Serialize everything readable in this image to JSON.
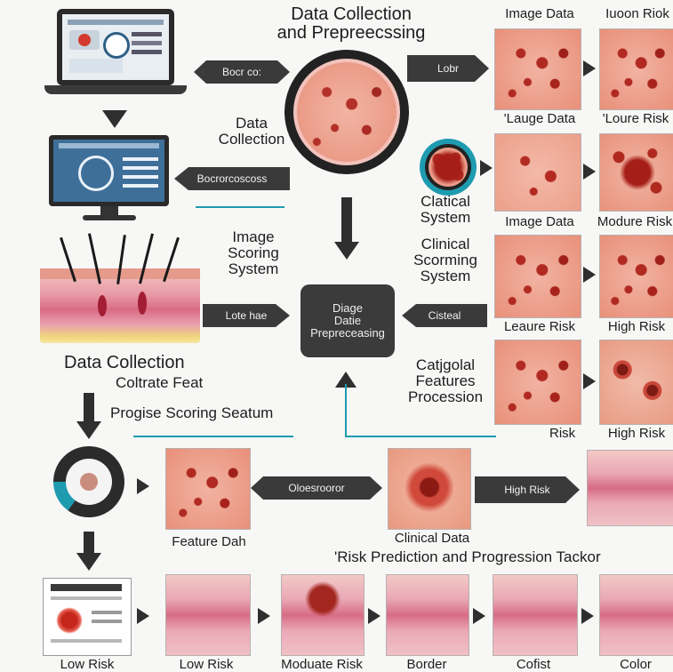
{
  "title_main": "Data Collection\nand Prepreecssing",
  "labels": {
    "image_data_top": "Image Data",
    "risk_top": "Iuoon Riok",
    "large_data": "'Lauge Data",
    "loure_risk": "'Loure Risk",
    "data_collection_mid": "Data\nCollection",
    "clatical_system": "Clatical\nSystem",
    "image_data_mid": "Image Data",
    "modure_risk": "Modure Risk",
    "image_scoring": "Image\nScoring\nSystem",
    "clinical_scoring": "Clinical\nScorming\nSystem",
    "leasure_risk": "Leaure Risk",
    "high_risk_1": "High Risk",
    "data_collection_left": "Data Collection",
    "coltrate_feat": "Coltrate Feat",
    "catgolal": "Catjgolal\nFeatures\nProcession",
    "progise": "Progise Scoring Seatum",
    "risk_small": "Risk",
    "high_risk_2": "High Risk",
    "feature_data": "Feature Dah",
    "clinical_data": "Clinical Data",
    "risk_prediction": "'Risk Prediction and Progression Tackor",
    "bottom_low_risk_1": "Low Risk",
    "bottom_low_risk_2": "Low Risk",
    "bottom_moderate": "Moduate Risk",
    "bottom_border": "Border",
    "bottom_cofist": "Cofist",
    "bottom_color": "Color"
  },
  "center_box": "Diage\nDatie\nPrepreceasing",
  "pills": {
    "p1": "Bocr co:",
    "p2": "Lobr",
    "p3": "Bocrorcoscoss",
    "p4": "Lote hae",
    "p5": "Cisteal",
    "p6": "Oloesrooror",
    "p7": "High Risk"
  },
  "colors": {
    "accent_line": "#1f9bb0",
    "arrow": "#2f2f2f",
    "screen": "#3e6f99"
  }
}
